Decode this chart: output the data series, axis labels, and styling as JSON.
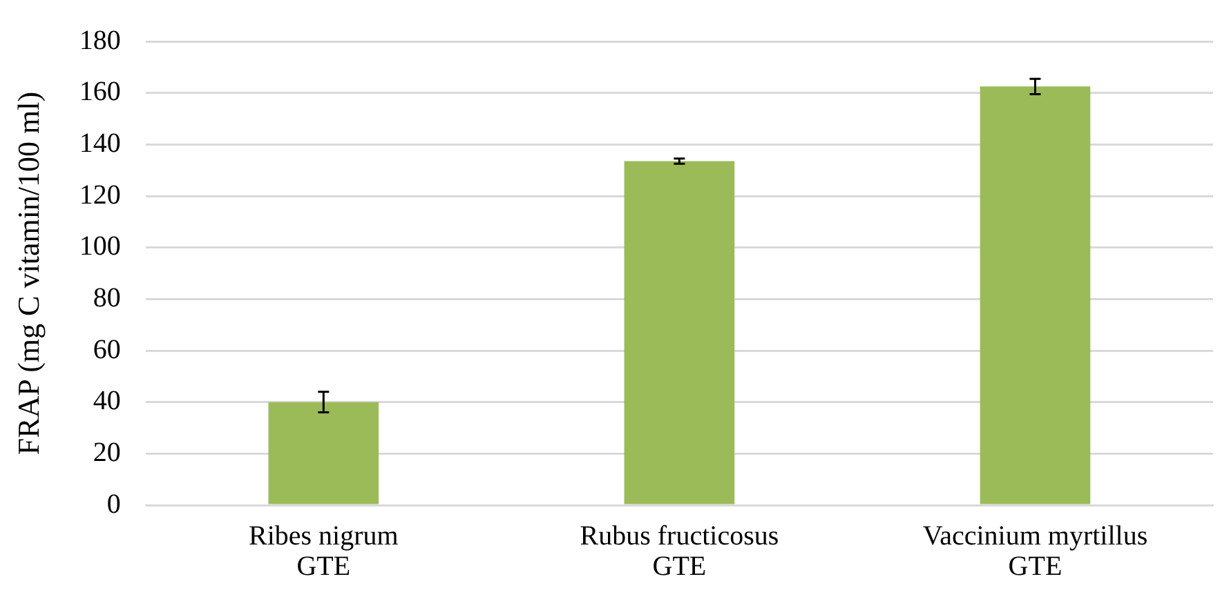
{
  "chart_data": {
    "type": "bar",
    "ylabel": "FRAP (mg C vitamin/100 ml)",
    "categories": [
      "Ribes nigrum\nGTE",
      "Rubus fructicosus\nGTE",
      "Vaccinium myrtillus\nGTE"
    ],
    "values": [
      40,
      133.5,
      162.5
    ],
    "errors": [
      4,
      1,
      3
    ],
    "color": "#9bbb59",
    "ylim": [
      0,
      180
    ],
    "yticks": [
      0,
      20,
      40,
      60,
      80,
      100,
      120,
      140,
      160,
      180
    ],
    "grid": "y",
    "legend": false
  }
}
